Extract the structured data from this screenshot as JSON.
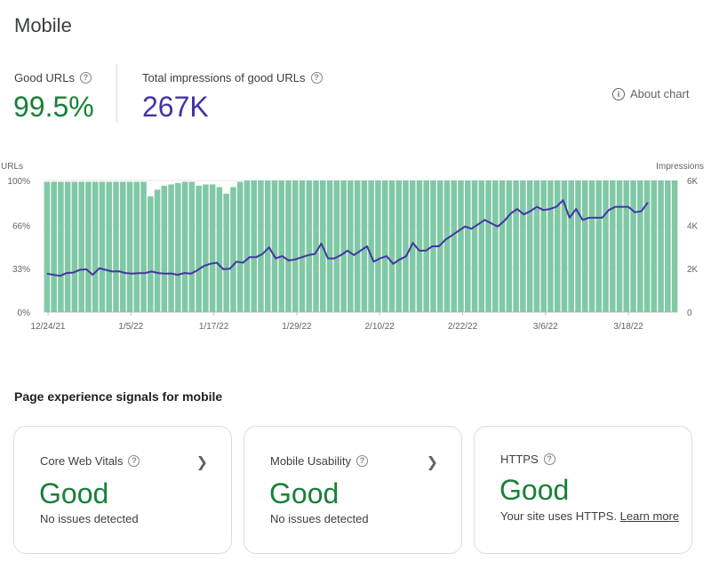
{
  "page": {
    "title": "Mobile"
  },
  "metrics": {
    "good_urls": {
      "label": "Good URLs",
      "value": "99.5%",
      "color": "#188038"
    },
    "impressions": {
      "label": "Total impressions of good URLs",
      "value": "267K",
      "color": "#4534a6"
    }
  },
  "about_chart": {
    "label": "About chart",
    "icon": "info-icon"
  },
  "chart_data": {
    "type": "bar",
    "left_axis_label": "URLs",
    "right_axis_label": "Impressions",
    "left_ticks": [
      "100%",
      "66%",
      "33%",
      "0%"
    ],
    "right_ticks": [
      "6K",
      "4K",
      "2K",
      "0"
    ],
    "x_tick_labels": [
      "12/24/21",
      "1/5/22",
      "1/17/22",
      "1/29/22",
      "2/10/22",
      "2/22/22",
      "3/6/22",
      "3/18/22"
    ],
    "bar_color": "#81c9a6",
    "line_color": "#4534a6",
    "series": [
      {
        "name": "Good URLs (%)",
        "values": [
          99,
          99,
          99,
          99,
          99,
          99,
          99,
          99,
          99,
          99,
          99,
          99,
          99,
          99,
          99,
          88,
          93,
          96,
          97,
          98,
          99,
          99,
          96,
          97,
          97,
          95,
          90,
          95,
          99,
          100,
          100,
          100,
          100,
          100,
          100,
          100,
          100,
          100,
          100,
          100,
          100,
          100,
          100,
          100,
          100,
          100,
          100,
          100,
          100,
          100,
          100,
          100,
          100,
          100,
          100,
          100,
          100,
          100,
          100,
          100,
          100,
          100,
          100,
          100,
          100,
          100,
          100,
          100,
          100,
          100,
          100,
          100,
          100,
          100,
          100,
          100,
          100,
          100,
          100,
          100,
          100,
          100,
          100,
          100,
          100,
          100,
          100,
          100,
          100,
          100,
          100,
          100
        ]
      },
      {
        "name": "Impressions",
        "values": [
          1750,
          1700,
          1650,
          1780,
          1800,
          1920,
          1950,
          1700,
          2000,
          1920,
          1850,
          1860,
          1780,
          1750,
          1770,
          1780,
          1850,
          1780,
          1750,
          1760,
          1700,
          1780,
          1750,
          1900,
          2100,
          2200,
          2250,
          1950,
          1980,
          2300,
          2250,
          2500,
          2500,
          2650,
          2950,
          2450,
          2550,
          2350,
          2400,
          2500,
          2600,
          2650,
          3120,
          2450,
          2450,
          2600,
          2800,
          2600,
          2800,
          3000,
          2300,
          2450,
          2550,
          2200,
          2400,
          2550,
          3150,
          2800,
          2800,
          3000,
          3000,
          3300,
          3500,
          3700,
          3900,
          3800,
          4000,
          4200,
          4050,
          3900,
          4150,
          4500,
          4700,
          4450,
          4600,
          4800,
          4650,
          4700,
          4800,
          5100,
          4300,
          4700,
          4200,
          4300,
          4300,
          4300,
          4650,
          4800,
          4800,
          4800,
          4550,
          4600,
          5000
        ]
      }
    ]
  },
  "signals": {
    "title": "Page experience signals for mobile",
    "cards": [
      {
        "title": "Core Web Vitals",
        "status": "Good",
        "subtitle": "No issues detected"
      },
      {
        "title": "Mobile Usability",
        "status": "Good",
        "subtitle": "No issues detected"
      },
      {
        "title": "HTTPS",
        "status": "Good",
        "subtitle": "Your site uses HTTPS.",
        "link": "Learn more"
      }
    ]
  }
}
